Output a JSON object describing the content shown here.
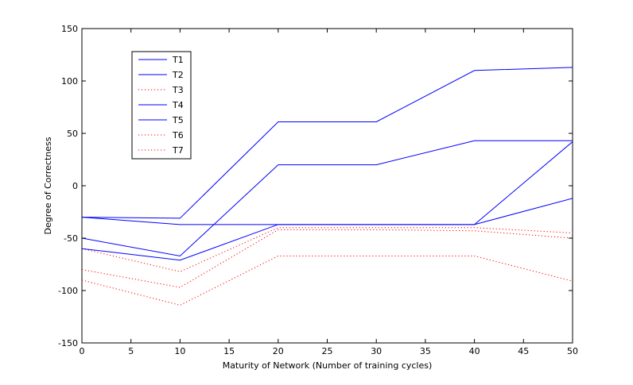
{
  "chart_data": {
    "type": "line",
    "xlabel": "Maturity of Network (Number of training cycles)",
    "ylabel": "Degree of Correctness",
    "xlim": [
      0,
      50
    ],
    "ylim": [
      -150,
      150
    ],
    "xticks": [
      "0",
      "5",
      "10",
      "15",
      "20",
      "25",
      "30",
      "35",
      "40",
      "45",
      "50"
    ],
    "yticks": [
      "-150",
      "-100",
      "-50",
      "0",
      "50",
      "100",
      "150"
    ],
    "grid": false,
    "legend_position": "top-left",
    "x": [
      0,
      10,
      20,
      30,
      40,
      50
    ],
    "series": [
      {
        "name": "T1",
        "color": "#0000ff",
        "style": "solid",
        "values": [
          -30,
          -31,
          61,
          61,
          110,
          113
        ]
      },
      {
        "name": "T2",
        "color": "#0000ff",
        "style": "solid",
        "values": [
          -50,
          -67,
          20,
          20,
          43,
          43
        ]
      },
      {
        "name": "T3",
        "color": "#ff0000",
        "style": "dotted",
        "values": [
          -60,
          -82,
          -40,
          -40,
          -40,
          -45
        ]
      },
      {
        "name": "T4",
        "color": "#0000ff",
        "style": "solid",
        "values": [
          -30,
          -37,
          -37,
          -37,
          -37,
          42
        ]
      },
      {
        "name": "T5",
        "color": "#0000ff",
        "style": "solid",
        "values": [
          -60,
          -71,
          -37,
          -37,
          -37,
          -12
        ]
      },
      {
        "name": "T6",
        "color": "#ff0000",
        "style": "dotted",
        "values": [
          -80,
          -97,
          -42,
          -42,
          -43,
          -50
        ]
      },
      {
        "name": "T7",
        "color": "#ff0000",
        "style": "dotted",
        "values": [
          -90,
          -114,
          -67,
          -67,
          -67,
          -91
        ]
      }
    ]
  }
}
